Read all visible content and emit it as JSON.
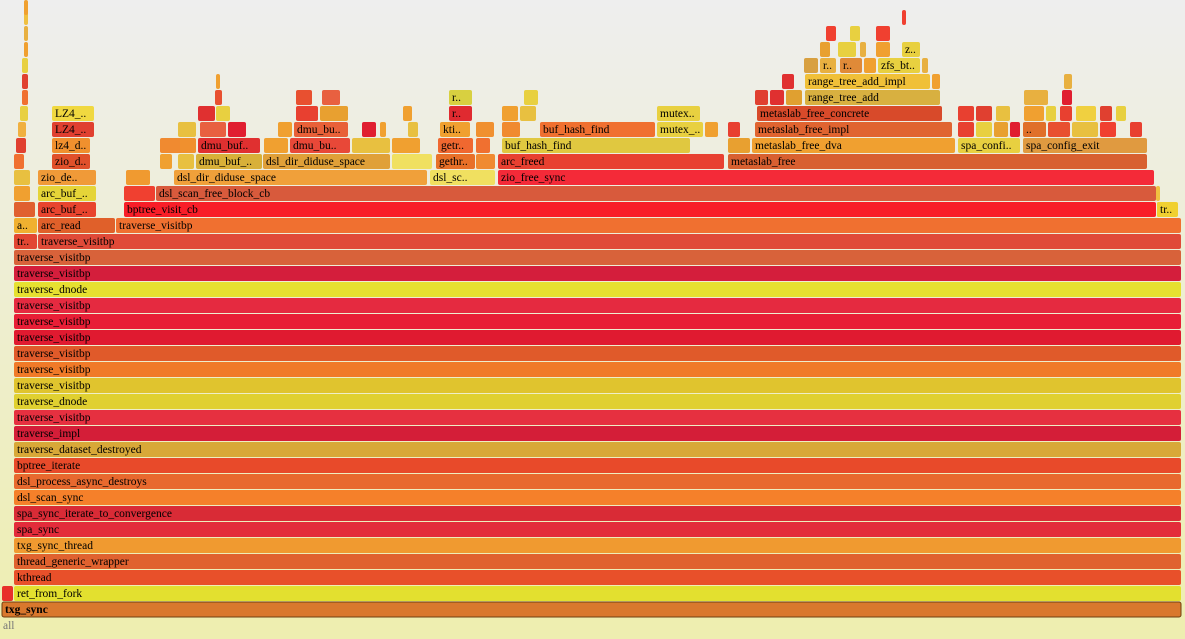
{
  "frames": [
    "all",
    "txg_sync",
    "ret_from_fork",
    "kthread",
    "thread_generic_wrapper",
    "txg_sync_thread",
    "spa_sync",
    "spa_sync_iterate_to_convergence",
    "dsl_scan_sync",
    "dsl_process_async_destroys",
    "bptree_iterate",
    "traverse_dataset_destroyed",
    "traverse_impl",
    "traverse_visitbp",
    "traverse_dnode",
    "traverse_visitbp",
    "traverse_visitbp",
    "traverse_visitbp",
    "traverse_visitbp",
    "traverse_visitbp",
    "traverse_visitbp",
    "traverse_dnode",
    "traverse_visitbp",
    "traverse_visitbp",
    "tr..",
    "traverse_visitbp",
    "a..",
    "arc_read",
    "traverse_visitbp",
    "arc_buf_..",
    "bptree_visit_cb",
    "tr..",
    "arc_buf_..",
    "dsl_scan_free_block_cb",
    "zio_de..",
    "dsl_dir_diduse_space",
    "dsl_sc..",
    "zio_free_sync",
    "zio_d..",
    "dmu_buf_..",
    "dsl_dir_diduse_space",
    "gethr..",
    "arc_freed",
    "metaslab_free",
    "lz4_d..",
    "dmu_buf..",
    "dmu_bu..",
    "getr..",
    "buf_hash_find",
    "metaslab_free_dva",
    "spa_confi..",
    "spa_config_exit",
    "LZ4_..",
    "dmu_bu..",
    "kti..",
    "buf_hash_find",
    "mutex_..",
    "metaslab_free_impl",
    "..",
    "LZ4_..",
    "r..",
    "mutex..",
    "metaslab_free_concrete",
    "r..",
    "range_tree_add",
    "range_tree_add_impl",
    "r..",
    "r..",
    "zfs_bt..",
    "z.."
  ]
}
